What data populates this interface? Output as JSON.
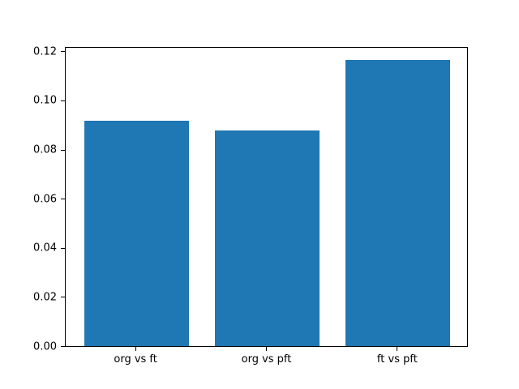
{
  "figure": {
    "background": "#ffffff",
    "axis_color": "#000000",
    "text_color": "#000000"
  },
  "chart_data": {
    "type": "bar",
    "title": "",
    "xlabel": "",
    "ylabel": "",
    "categories": [
      "org vs ft",
      "org vs pft",
      "ft vs pft"
    ],
    "values": [
      0.0916,
      0.0876,
      0.1163
    ],
    "bar_centers": [
      0,
      1,
      2
    ],
    "bar_width": 0.8,
    "bar_color": "#1f77b4",
    "xlim": [
      -0.54,
      2.54
    ],
    "ylim": [
      0,
      0.1221
    ],
    "yticks": [
      0.0,
      0.02,
      0.04,
      0.06,
      0.08,
      0.1,
      0.12
    ],
    "ytick_labels": [
      "0.00",
      "0.02",
      "0.04",
      "0.06",
      "0.08",
      "0.10",
      "0.12"
    ],
    "grid": false,
    "legend": null
  }
}
